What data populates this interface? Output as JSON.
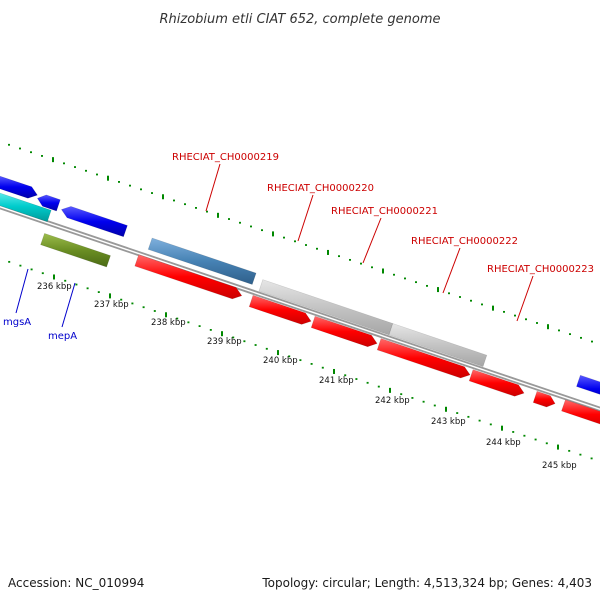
{
  "title": "Rhizobium etli CIAT 652, complete genome",
  "footer": {
    "accession": "Accession: NC_010994",
    "summary": "Topology: circular; Length: 4,513,324 bp; Genes: 4,403"
  },
  "scale": {
    "ticks": [
      "236 kbp",
      "237 kbp",
      "238 kbp",
      "239 kbp",
      "240 kbp",
      "241 kbp",
      "242 kbp",
      "243 kbp",
      "244 kbp",
      "245 kbp"
    ]
  },
  "gene_labels": {
    "red": [
      "RHECIAT_CH0000219",
      "RHECIAT_CH0000220",
      "RHECIAT_CH0000221",
      "RHECIAT_CH0000222",
      "RHECIAT_CH0000223"
    ],
    "blue": [
      "mgsA",
      "mepA"
    ]
  },
  "colors": {
    "cds": "#ff0000",
    "blue_feature": "#0000ee",
    "cyan_feature": "#00cccc",
    "olive_feature": "#6b8e23",
    "steel_feature": "#4682b4",
    "gray_feature": "#bbbbbb",
    "backbone": "#888888",
    "gc_ticks": "#008800",
    "red_label": "#cc0000",
    "blue_label": "#0000cc"
  }
}
